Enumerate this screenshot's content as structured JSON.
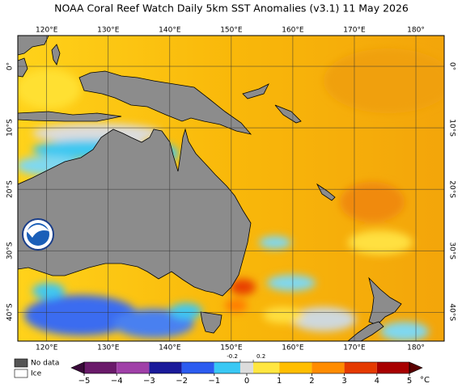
{
  "title": "NOAA Coral Reef Watch Daily 5km SST Anomalies  (v3.1)   11 May 2026",
  "map": {
    "xlim": [
      115.3,
      184.6
    ],
    "ylim": [
      -44.7,
      5
    ],
    "lon_ticks": [
      {
        "value": 120,
        "label": "120°E"
      },
      {
        "value": 130,
        "label": "130°E"
      },
      {
        "value": 140,
        "label": "140°E"
      },
      {
        "value": 150,
        "label": "150°E"
      },
      {
        "value": 160,
        "label": "160°E"
      },
      {
        "value": 170,
        "label": "170°E"
      },
      {
        "value": 180,
        "label": "180°"
      }
    ],
    "lat_ticks": [
      {
        "value": 0,
        "label": "0°"
      },
      {
        "value": -10,
        "label": "10°S"
      },
      {
        "value": -20,
        "label": "20°S"
      },
      {
        "value": -30,
        "label": "30°S"
      },
      {
        "value": -40,
        "label": "40°S"
      }
    ]
  },
  "colorbar": {
    "range": [
      -5,
      5
    ],
    "unit": "°C",
    "ticks": [
      {
        "value": -5,
        "label": "−5"
      },
      {
        "value": -4,
        "label": "−4"
      },
      {
        "value": -3,
        "label": "−3"
      },
      {
        "value": -2,
        "label": "−2"
      },
      {
        "value": -1,
        "label": "−1"
      },
      0,
      1,
      2,
      3,
      4,
      5
    ],
    "minor_ticks": [
      {
        "value": -0.2,
        "label": "-0.2"
      },
      0.2
    ],
    "under_color": "#3a0a3a",
    "over_color": "#5a0000",
    "segments": [
      {
        "from": -5,
        "to": -4,
        "color": "#6a1a6a"
      },
      {
        "from": -4,
        "to": -3,
        "color": "#a040a8"
      },
      {
        "from": -3,
        "to": -2,
        "color": "#1a1a9a"
      },
      {
        "from": -2,
        "to": -1,
        "color": "#2c5cf0"
      },
      {
        "from": -1,
        "to": -0.2,
        "color": "#39c8f4"
      },
      {
        "from": -0.2,
        "to": 0.2,
        "color": "#dcdcdc"
      },
      {
        "from": 0.2,
        "to": 1,
        "color": "#ffe640"
      },
      {
        "from": 1,
        "to": 2,
        "color": "#ffbe00"
      },
      {
        "from": 2,
        "to": 3,
        "color": "#ff8c00"
      },
      {
        "from": 3,
        "to": 4,
        "color": "#e53a00"
      },
      {
        "from": 4,
        "to": 5,
        "color": "#a80000"
      }
    ]
  },
  "legend": {
    "no_data": "No data",
    "ice": "Ice"
  }
}
